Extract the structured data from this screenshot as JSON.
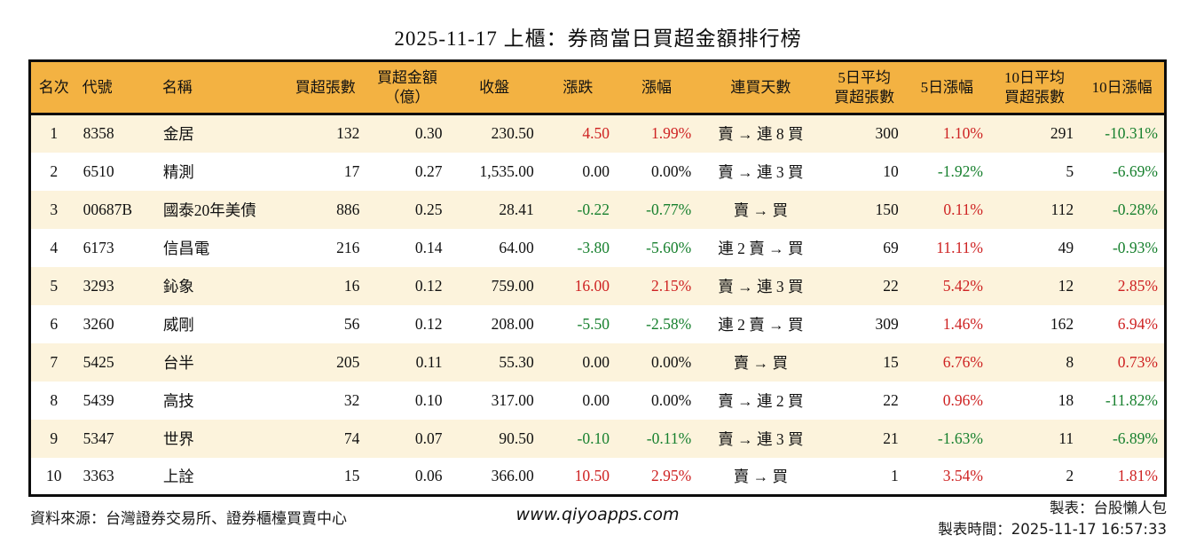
{
  "title": "2025-11-17 上櫃：券商當日買超金額排行榜",
  "colors": {
    "up_red": "#ce2222",
    "down_green": "#17802e",
    "header_bg": "#f3b242",
    "stripe_bg": "#fcf3dc",
    "border": "#0d0d0d"
  },
  "chart_data": {
    "type": "table",
    "title": "2025-11-17 上櫃：券商當日買超金額排行榜",
    "columns": [
      {
        "key": "rank",
        "label": "名次",
        "align": "ac"
      },
      {
        "key": "code",
        "label": "代號",
        "align": "al"
      },
      {
        "key": "name",
        "label": "名稱",
        "align": "al"
      },
      {
        "key": "net_buy_lots",
        "label": "買超張數",
        "align": "ar"
      },
      {
        "key": "net_buy_amount",
        "label": "買超金額\n（億）",
        "align": "ar"
      },
      {
        "key": "close",
        "label": "收盤",
        "align": "ar"
      },
      {
        "key": "change",
        "label": "漲跌",
        "align": "ar",
        "color_rule": "signed"
      },
      {
        "key": "change_pct",
        "label": "漲幅",
        "align": "ar",
        "color_rule": "signed"
      },
      {
        "key": "buy_streak",
        "label": "連買天數",
        "align": "ac"
      },
      {
        "key": "avg5_lots",
        "label": "5日平均\n買超張數",
        "align": "ar"
      },
      {
        "key": "pct5",
        "label": "5日漲幅",
        "align": "ar",
        "color_rule": "signed"
      },
      {
        "key": "avg10_lots",
        "label": "10日平均\n買超張數",
        "align": "ar"
      },
      {
        "key": "pct10",
        "label": "10日漲幅",
        "align": "ar",
        "color_rule": "signed"
      }
    ],
    "rows": [
      {
        "rank": "1",
        "code": "8358",
        "name": "金居",
        "net_buy_lots": "132",
        "net_buy_amount": "0.30",
        "close": "230.50",
        "change": "4.50",
        "change_pct": "1.99%",
        "buy_streak": "賣 → 連 8 買",
        "avg5_lots": "300",
        "pct5": "1.10%",
        "avg10_lots": "291",
        "pct10": "-10.31%"
      },
      {
        "rank": "2",
        "code": "6510",
        "name": "精測",
        "net_buy_lots": "17",
        "net_buy_amount": "0.27",
        "close": "1,535.00",
        "change": "0.00",
        "change_pct": "0.00%",
        "buy_streak": "賣 → 連 3 買",
        "avg5_lots": "10",
        "pct5": "-1.92%",
        "avg10_lots": "5",
        "pct10": "-6.69%"
      },
      {
        "rank": "3",
        "code": "00687B",
        "name": "國泰20年美債",
        "net_buy_lots": "886",
        "net_buy_amount": "0.25",
        "close": "28.41",
        "change": "-0.22",
        "change_pct": "-0.77%",
        "buy_streak": "賣 → 買",
        "avg5_lots": "150",
        "pct5": "0.11%",
        "avg10_lots": "112",
        "pct10": "-0.28%"
      },
      {
        "rank": "4",
        "code": "6173",
        "name": "信昌電",
        "net_buy_lots": "216",
        "net_buy_amount": "0.14",
        "close": "64.00",
        "change": "-3.80",
        "change_pct": "-5.60%",
        "buy_streak": "連 2 賣 → 買",
        "avg5_lots": "69",
        "pct5": "11.11%",
        "avg10_lots": "49",
        "pct10": "-0.93%"
      },
      {
        "rank": "5",
        "code": "3293",
        "name": "鈊象",
        "net_buy_lots": "16",
        "net_buy_amount": "0.12",
        "close": "759.00",
        "change": "16.00",
        "change_pct": "2.15%",
        "buy_streak": "賣 → 連 3 買",
        "avg5_lots": "22",
        "pct5": "5.42%",
        "avg10_lots": "12",
        "pct10": "2.85%"
      },
      {
        "rank": "6",
        "code": "3260",
        "name": "威剛",
        "net_buy_lots": "56",
        "net_buy_amount": "0.12",
        "close": "208.00",
        "change": "-5.50",
        "change_pct": "-2.58%",
        "buy_streak": "連 2 賣 → 買",
        "avg5_lots": "309",
        "pct5": "1.46%",
        "avg10_lots": "162",
        "pct10": "6.94%"
      },
      {
        "rank": "7",
        "code": "5425",
        "name": "台半",
        "net_buy_lots": "205",
        "net_buy_amount": "0.11",
        "close": "55.30",
        "change": "0.00",
        "change_pct": "0.00%",
        "buy_streak": "賣 → 買",
        "avg5_lots": "15",
        "pct5": "6.76%",
        "avg10_lots": "8",
        "pct10": "0.73%"
      },
      {
        "rank": "8",
        "code": "5439",
        "name": "高技",
        "net_buy_lots": "32",
        "net_buy_amount": "0.10",
        "close": "317.00",
        "change": "0.00",
        "change_pct": "0.00%",
        "buy_streak": "賣 → 連 2 買",
        "avg5_lots": "22",
        "pct5": "0.96%",
        "avg10_lots": "18",
        "pct10": "-11.82%"
      },
      {
        "rank": "9",
        "code": "5347",
        "name": "世界",
        "net_buy_lots": "74",
        "net_buy_amount": "0.07",
        "close": "90.50",
        "change": "-0.10",
        "change_pct": "-0.11%",
        "buy_streak": "賣 → 連 3 買",
        "avg5_lots": "21",
        "pct5": "-1.63%",
        "avg10_lots": "11",
        "pct10": "-6.89%"
      },
      {
        "rank": "10",
        "code": "3363",
        "name": "上詮",
        "net_buy_lots": "15",
        "net_buy_amount": "0.06",
        "close": "366.00",
        "change": "10.50",
        "change_pct": "2.95%",
        "buy_streak": "賣 → 買",
        "avg5_lots": "1",
        "pct5": "3.54%",
        "avg10_lots": "2",
        "pct10": "1.81%"
      }
    ]
  },
  "footer": {
    "source": "資料來源：台灣證券交易所、證券櫃檯買賣中心",
    "website": "www.qiyoapps.com",
    "maker": "製表：台股懶人包",
    "made_at": "製表時間：2025-11-17 16:57:33"
  }
}
